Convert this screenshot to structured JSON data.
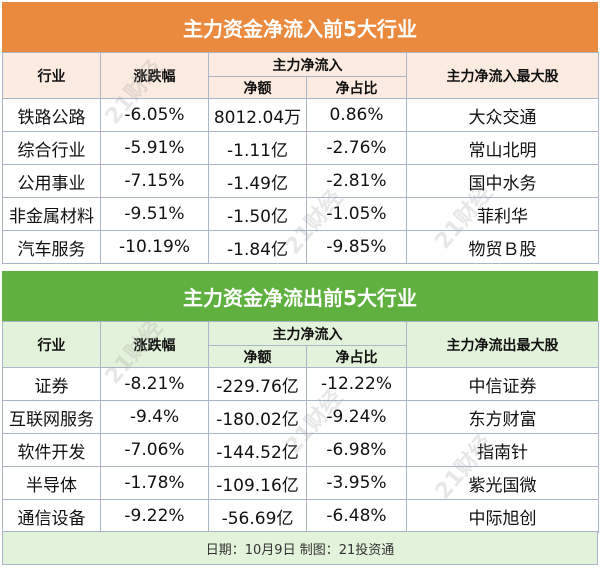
{
  "inflow": {
    "title": "主力资金净流入前5大行业",
    "headers": {
      "industry": "行业",
      "change": "涨跌幅",
      "net_flow": "主力净流入",
      "net_amount": "净额",
      "net_ratio": "净占比",
      "top_stock": "主力净流入最大股"
    },
    "rows": [
      {
        "industry": "铁路公路",
        "change": "-6.05%",
        "amount": "8012.04万",
        "ratio": "0.86%",
        "stock": "大众交通"
      },
      {
        "industry": "综合行业",
        "change": "-5.91%",
        "amount": "-1.11亿",
        "ratio": "-2.76%",
        "stock": "常山北明"
      },
      {
        "industry": "公用事业",
        "change": "-7.15%",
        "amount": "-1.49亿",
        "ratio": "-2.81%",
        "stock": "国中水务"
      },
      {
        "industry": "非金属材料",
        "change": "-9.51%",
        "amount": "-1.50亿",
        "ratio": "-1.05%",
        "stock": "菲利华"
      },
      {
        "industry": "汽车服务",
        "change": "-10.19%",
        "amount": "-1.84亿",
        "ratio": "-9.85%",
        "stock": "物贸Ｂ股"
      }
    ]
  },
  "outflow": {
    "title": "主力资金净流出前5大行业",
    "headers": {
      "industry": "行业",
      "change": "涨跌幅",
      "net_flow": "主力净流入",
      "net_amount": "净额",
      "net_ratio": "净占比",
      "top_stock": "主力净流出最大股"
    },
    "rows": [
      {
        "industry": "证券",
        "change": "-8.21%",
        "amount": "-229.76亿",
        "ratio": "-12.22%",
        "stock": "中信证券"
      },
      {
        "industry": "互联网服务",
        "change": "-9.4%",
        "amount": "-180.02亿",
        "ratio": "-9.24%",
        "stock": "东方财富"
      },
      {
        "industry": "软件开发",
        "change": "-7.06%",
        "amount": "-144.52亿",
        "ratio": "-6.98%",
        "stock": "指南针"
      },
      {
        "industry": "半导体",
        "change": "-1.78%",
        "amount": "-109.16亿",
        "ratio": "-3.95%",
        "stock": "紫光国微"
      },
      {
        "industry": "通信设备",
        "change": "-9.22%",
        "amount": "-56.69亿",
        "ratio": "-6.48%",
        "stock": "中际旭创"
      }
    ]
  },
  "footer": "日期：10月9日 制图：21投资通",
  "watermark": "21财经",
  "colors": {
    "inflow_title_bg": "#ea8a3f",
    "inflow_header_bg": "#fcebe0",
    "outflow_title_bg": "#5fb03f",
    "outflow_header_bg": "#e3f2da",
    "border": "#aab6c8"
  }
}
